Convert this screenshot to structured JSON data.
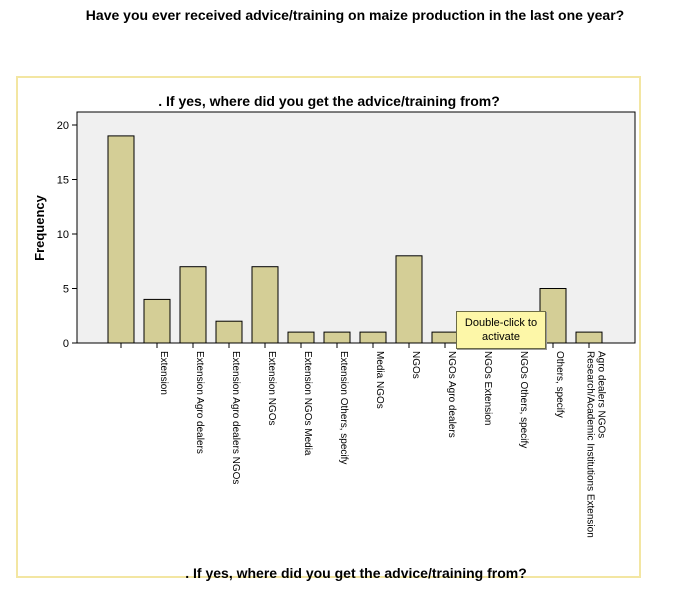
{
  "page": {
    "title": "Have you ever received advice/training on maize production in the last one year?"
  },
  "tooltip": {
    "text_line1": "Double-click to",
    "text_line2": "activate"
  },
  "colors": {
    "bar_fill": "#d4ce96",
    "bar_stroke": "#000000",
    "plot_background": "#f0f0f0",
    "frame_border": "#f3e6a2",
    "tooltip_background": "#fdf7a8"
  },
  "chart_data": {
    "type": "bar",
    "title": ". If yes, where did you get the advice/training from?",
    "xlabel": ". If yes, where did you get the advice/training from?",
    "ylabel": "Frequency",
    "ylim": [
      0,
      20
    ],
    "yticks": [
      0,
      5,
      10,
      15,
      20
    ],
    "grid": false,
    "categories": [
      "",
      "Extension",
      "Extension Agro dealers",
      "Extension Agro dealers NGOs",
      "Extension NGOs",
      "Extension NGOs Media",
      "Extension Others, specify",
      "Media NGOs",
      "NGOs",
      "NGOs Agro dealers",
      "NGOs Extension",
      "NGOs Others, specify",
      "Others, specify",
      [
        "Research/Academic Institutions Extension",
        "Agro dealers NGOs"
      ]
    ],
    "values": [
      19,
      4,
      7,
      2,
      7,
      1,
      1,
      1,
      8,
      1,
      1,
      1,
      5,
      1
    ]
  }
}
